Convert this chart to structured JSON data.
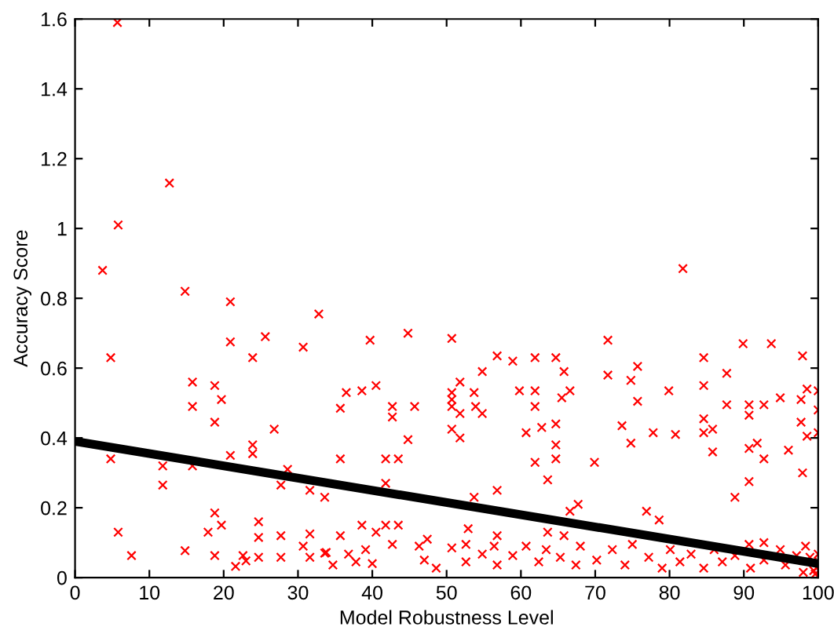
{
  "chart_data": {
    "type": "scatter",
    "xlabel": "Model Robustness Level",
    "ylabel": "Accuracy Score",
    "xlim": [
      0,
      100
    ],
    "ylim": [
      0,
      1.6
    ],
    "xticks": [
      0,
      10,
      20,
      30,
      40,
      50,
      60,
      70,
      80,
      90,
      100
    ],
    "yticks": [
      0,
      0.2,
      0.4,
      0.6,
      0.8,
      1,
      1.2,
      1.4,
      1.6
    ],
    "grid": false,
    "legend": false,
    "series": [
      {
        "color": "#ff0000",
        "marker": "cross",
        "x": [
          5.7,
          12.7,
          5.8,
          3.7,
          14.8,
          20.9,
          32.8,
          20.9,
          25.6,
          30.7,
          4.8,
          23.9,
          15.8,
          18.8,
          19.7,
          15.8,
          18.8,
          26.8,
          23.9,
          23.9,
          20.9,
          4.8,
          11.8,
          15.8,
          28.6,
          11.8,
          27.7,
          31.6,
          33.6,
          18.8,
          19.7,
          24.7,
          5.8,
          17.9,
          24.7,
          27.7,
          31.6,
          30.7,
          14.8,
          7.6,
          18.8,
          22.6,
          24.7,
          27.7,
          31.6,
          21.6,
          23,
          33.6,
          39.7,
          44.8,
          50.7,
          56.8,
          58.9,
          61.9,
          64.7,
          65.8,
          54.8,
          51.8,
          36.5,
          38.6,
          40.5,
          35.7,
          42.7,
          45.7,
          42.7,
          50.7,
          50.7,
          50.7,
          51.8,
          53.7,
          53.9,
          54.8,
          59.8,
          61.9,
          61.9,
          65.5,
          66.6,
          50.7,
          51.8,
          44.8,
          60.7,
          62.8,
          64.7,
          64.7,
          61.9,
          64.7,
          35.7,
          41.8,
          43.5,
          41.8,
          63.6,
          53.7,
          56.8,
          66.6,
          38.6,
          41.8,
          43.5,
          35.7,
          40.5,
          52.9,
          56.8,
          63.6,
          65.8,
          34.7,
          36.8,
          37.8,
          39.1,
          40,
          42.7,
          46.3,
          47.4,
          47,
          48.6,
          50.7,
          52.6,
          52.6,
          54.8,
          56.4,
          56.8,
          58.9,
          60.7,
          62.4,
          63.4,
          65.3,
          67.4,
          33.8,
          81.8,
          71.7,
          89.9,
          93.7,
          84.6,
          97.9,
          75.7,
          71.7,
          74.8,
          87.7,
          84.6,
          79.9,
          98.5,
          100,
          75.7,
          87.7,
          90.7,
          92.7,
          94.9,
          97.7,
          100,
          90.7,
          84.6,
          97.7,
          73.6,
          77.8,
          80.8,
          84.6,
          85.8,
          98.5,
          100,
          74.8,
          90.7,
          91.8,
          96,
          85.8,
          92.7,
          69.9,
          97.9,
          90.7,
          88.8,
          67.7,
          76.9,
          78.6,
          68,
          70.2,
          72.3,
          74,
          75,
          77.2,
          79,
          80.1,
          81.4,
          82.9,
          84.6,
          86,
          87.1,
          88.8,
          90.7,
          90.9,
          92.7,
          92.7,
          94.9,
          95.6,
          97.1,
          98.3,
          99.2,
          99.8,
          100,
          99.4,
          98.9,
          99.6,
          98
        ],
        "values": [
          1.59,
          1.13,
          1.01,
          0.88,
          0.82,
          0.79,
          0.755,
          0.675,
          0.69,
          0.66,
          0.63,
          0.63,
          0.56,
          0.55,
          0.51,
          0.49,
          0.445,
          0.425,
          0.38,
          0.355,
          0.35,
          0.34,
          0.32,
          0.32,
          0.31,
          0.265,
          0.265,
          0.25,
          0.23,
          0.185,
          0.15,
          0.16,
          0.13,
          0.13,
          0.115,
          0.12,
          0.125,
          0.09,
          0.077,
          0.063,
          0.063,
          0.063,
          0.058,
          0.058,
          0.058,
          0.032,
          0.048,
          0.07,
          0.68,
          0.7,
          0.685,
          0.635,
          0.62,
          0.63,
          0.63,
          0.59,
          0.59,
          0.56,
          0.53,
          0.535,
          0.55,
          0.485,
          0.49,
          0.49,
          0.46,
          0.53,
          0.51,
          0.49,
          0.47,
          0.53,
          0.49,
          0.47,
          0.535,
          0.535,
          0.49,
          0.515,
          0.535,
          0.425,
          0.4,
          0.395,
          0.415,
          0.43,
          0.44,
          0.38,
          0.33,
          0.34,
          0.34,
          0.34,
          0.34,
          0.27,
          0.28,
          0.23,
          0.25,
          0.19,
          0.15,
          0.15,
          0.15,
          0.12,
          0.13,
          0.14,
          0.12,
          0.13,
          0.12,
          0.036,
          0.067,
          0.045,
          0.08,
          0.04,
          0.095,
          0.09,
          0.11,
          0.05,
          0.027,
          0.085,
          0.095,
          0.045,
          0.067,
          0.09,
          0.036,
          0.063,
          0.09,
          0.045,
          0.08,
          0.058,
          0.036,
          0.072,
          0.885,
          0.68,
          0.67,
          0.67,
          0.63,
          0.635,
          0.605,
          0.58,
          0.565,
          0.585,
          0.55,
          0.535,
          0.54,
          0.535,
          0.505,
          0.495,
          0.495,
          0.495,
          0.515,
          0.51,
          0.48,
          0.465,
          0.455,
          0.445,
          0.435,
          0.415,
          0.41,
          0.415,
          0.425,
          0.405,
          0.415,
          0.385,
          0.37,
          0.385,
          0.365,
          0.36,
          0.34,
          0.33,
          0.3,
          0.275,
          0.23,
          0.21,
          0.19,
          0.165,
          0.09,
          0.05,
          0.08,
          0.036,
          0.095,
          0.058,
          0.027,
          0.08,
          0.045,
          0.067,
          0.027,
          0.08,
          0.045,
          0.063,
          0.095,
          0.027,
          0.1,
          0.05,
          0.08,
          0.036,
          0.063,
          0.09,
          0.045,
          0.027,
          0.067,
          0.02,
          0.058,
          0.01,
          0.015
        ]
      },
      {
        "type": "line",
        "color": "#000000",
        "marker": "none",
        "line_style": "solid",
        "x": [
          0,
          100
        ],
        "values": [
          0.39,
          0.04
        ]
      }
    ]
  }
}
